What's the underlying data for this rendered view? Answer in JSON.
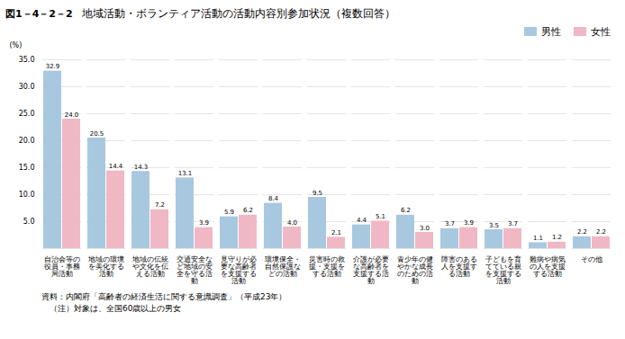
{
  "chart_data": {
    "type": "bar",
    "title": "地域活動・ボランティア活動の活動内容別参加状況（複数回答）",
    "annotations": [
      "図1－4－2－2",
      "資料：内閣府「高齢者の経済生活に関する意識調査」（平成23年）",
      "　（注）対象は、全国60歳以上の男女"
    ],
    "ylabel": "(%)",
    "categories": [
      "自治会等の\n役員・事務\n局活動",
      "地域の環境\nを美化する\n活動",
      "地域の伝統\nや文化を伝\nえる活動",
      "交通安全な\nど地域の安\n全を守る活\n動",
      "見守りが必\n要な高齢者\nを支援する\n活動",
      "環境保全・\n自然保護な\nどの活動",
      "災害時の救\n援・支援を\nする活動",
      "介護が必要\nな高齢者を\n支援する活\n動",
      "青少年の健\nやかな成長\nのための活\n動",
      "障害のある\n人を支援す\nる活動",
      "子どもを育\nてている親\nを支援する\n活動",
      "難病や病気\nの人を支援\nする活動",
      "その他"
    ],
    "series": [
      {
        "name": "男性",
        "color": "#a8c8e0",
        "values": [
          32.9,
          20.5,
          14.3,
          13.1,
          5.9,
          8.4,
          9.5,
          4.4,
          6.2,
          3.7,
          3.5,
          1.1,
          2.2
        ],
        "value_labels": [
          "32.9",
          "20.5",
          "14.3",
          "13.1",
          "5.9",
          "8.4",
          "9.5",
          "4.4",
          "6.2",
          "3.7",
          "3.5",
          "1.1",
          "2.2"
        ]
      },
      {
        "name": "女性",
        "color": "#f0b8c4",
        "values": [
          24.0,
          14.4,
          7.2,
          3.9,
          6.2,
          4.0,
          2.1,
          5.1,
          3.0,
          3.9,
          3.7,
          1.2,
          2.2
        ],
        "value_labels": [
          "24.0",
          "14.4",
          "7.2",
          "3.9",
          "6.2",
          "4.0",
          "2.1",
          "5.1",
          "3.0",
          "3.9",
          "3.7",
          "1.2",
          "2.2"
        ]
      }
    ],
    "ylim": [
      0,
      35
    ],
    "yticks": [
      {
        "value": 0,
        "label": ""
      },
      {
        "value": 5,
        "label": "5.0"
      },
      {
        "value": 10,
        "label": "10.0"
      },
      {
        "value": 15,
        "label": "15.0"
      },
      {
        "value": 20,
        "label": "20.0"
      },
      {
        "value": 25,
        "label": "25.0"
      },
      {
        "value": 30,
        "label": "30.0"
      },
      {
        "value": 35,
        "label": "35.0"
      }
    ],
    "grid": true,
    "legend": "upper right",
    "data_labels": true
  }
}
